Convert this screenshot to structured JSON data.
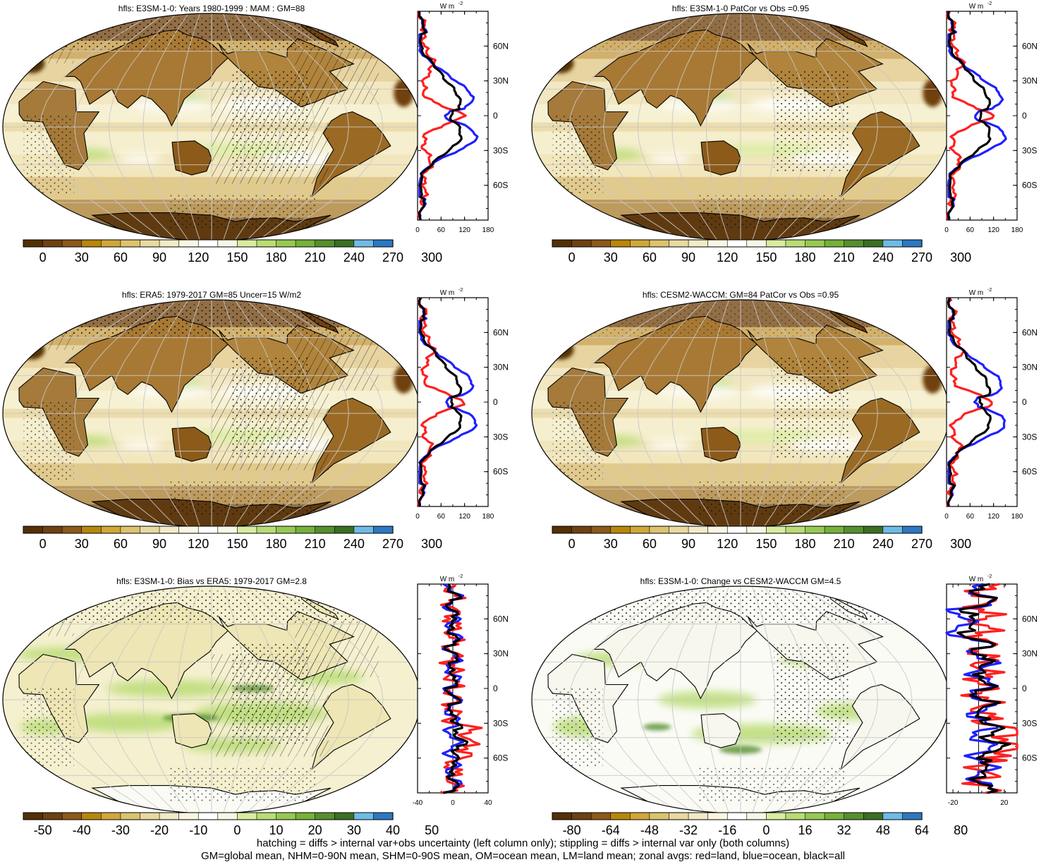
{
  "panels": [
    {
      "title": "hfls: E3SM-1-0: Years 1980-1999 : MAM : GM=88",
      "colorbar": {
        "labels": [
          "0",
          "30",
          "60",
          "90",
          "120",
          "150",
          "180",
          "210",
          "240",
          "270",
          "300"
        ],
        "palette": "mean"
      },
      "zonal": {
        "ticks": [
          "0",
          "60",
          "120",
          "180"
        ],
        "range": [
          0,
          180
        ],
        "unit": "W m-2",
        "kind": "mean",
        "variant": 0
      }
    },
    {
      "title": "hfls: E3SM-1-0 PatCor vs Obs =0.95",
      "colorbar": {
        "labels": [
          "0",
          "30",
          "60",
          "90",
          "120",
          "150",
          "180",
          "210",
          "240",
          "270",
          "300"
        ],
        "palette": "mean"
      },
      "zonal": {
        "ticks": [
          "0",
          "60",
          "120",
          "180"
        ],
        "range": [
          0,
          180
        ],
        "unit": "W m-2",
        "kind": "mean",
        "variant": 1
      }
    },
    {
      "title": "hfls: ERA5: 1979-2017 GM=85 Uncer=15 W/m2",
      "colorbar": {
        "labels": [
          "0",
          "30",
          "60",
          "90",
          "120",
          "150",
          "180",
          "210",
          "240",
          "270",
          "300"
        ],
        "palette": "mean"
      },
      "zonal": {
        "ticks": [
          "0",
          "60",
          "120",
          "180"
        ],
        "range": [
          0,
          180
        ],
        "unit": "W m-2",
        "kind": "mean",
        "variant": 2
      }
    },
    {
      "title": "hfls: CESM2-WACCM: GM=84 PatCor vs Obs =0.95",
      "colorbar": {
        "labels": [
          "0",
          "30",
          "60",
          "90",
          "120",
          "150",
          "180",
          "210",
          "240",
          "270",
          "300"
        ],
        "palette": "mean"
      },
      "zonal": {
        "ticks": [
          "0",
          "60",
          "120",
          "180"
        ],
        "range": [
          0,
          180
        ],
        "unit": "W m-2",
        "kind": "mean",
        "variant": 3
      }
    },
    {
      "title": "hfls: E3SM-1-0: Bias vs ERA5: 1979-2017 GM=2.8",
      "colorbar": {
        "labels": [
          "-50",
          "-40",
          "-30",
          "-20",
          "-10",
          "0",
          "10",
          "20",
          "30",
          "40",
          "50"
        ],
        "palette": "diff"
      },
      "zonal": {
        "ticks": [
          "-40",
          "0",
          "40"
        ],
        "range": [
          -40,
          40
        ],
        "unit": "W m-2",
        "kind": "diff",
        "variant": 4
      }
    },
    {
      "title": "hfls: E3SM-1-0: Change vs CESM2-WACCM GM=4.5",
      "colorbar": {
        "labels": [
          "-80",
          "-64",
          "-48",
          "-32",
          "-16",
          "0",
          "16",
          "32",
          "48",
          "64",
          "80"
        ],
        "palette": "diff"
      },
      "zonal": {
        "ticks": [
          "-20",
          "20"
        ],
        "range": [
          -25,
          30
        ],
        "unit": "W m-2",
        "kind": "diff",
        "variant": 5
      }
    }
  ],
  "lat_ticks": [
    "60N",
    "30N",
    "0",
    "30S",
    "60S"
  ],
  "unit_base": "W m",
  "unit_exp": "-2",
  "footnote_1": "hatching = diffs > internal var+obs uncertainty (left column only); stippling = diffs > internal var only (both columns)",
  "footnote_2": "GM=global mean, NHM=0-90N mean, SHM=0-90S mean, OM=ocean mean, LM=land mean; zonal avgs: red=land, blue=ocean, black=all",
  "palettes": {
    "mean": [
      "#543005",
      "#6f4110",
      "#8c5a19",
      "#b8860b",
      "#d0a73a",
      "#dcc36f",
      "#e8d9a0",
      "#f3ebc6",
      "#fbf6e4",
      "#ffffff",
      "#f4f8e6",
      "#d9ec9f",
      "#b9dc74",
      "#97c952",
      "#76b13b",
      "#568f2e",
      "#3b7023",
      "#6fbbe6",
      "#2c78c1"
    ],
    "diff": [
      "#543005",
      "#6f4110",
      "#8c5a19",
      "#b8860b",
      "#d0a73a",
      "#dcc36f",
      "#e8d9a0",
      "#f3ebc6",
      "#fbf6e4",
      "#ffffff",
      "#f4f8e6",
      "#d9ec9f",
      "#b9dc74",
      "#97c952",
      "#76b13b",
      "#568f2e",
      "#3b7023",
      "#6fbbe6",
      "#2c78c1"
    ]
  },
  "zonal_colors": {
    "land": "#ff2020",
    "ocean": "#2020ff",
    "all": "#000000"
  }
}
